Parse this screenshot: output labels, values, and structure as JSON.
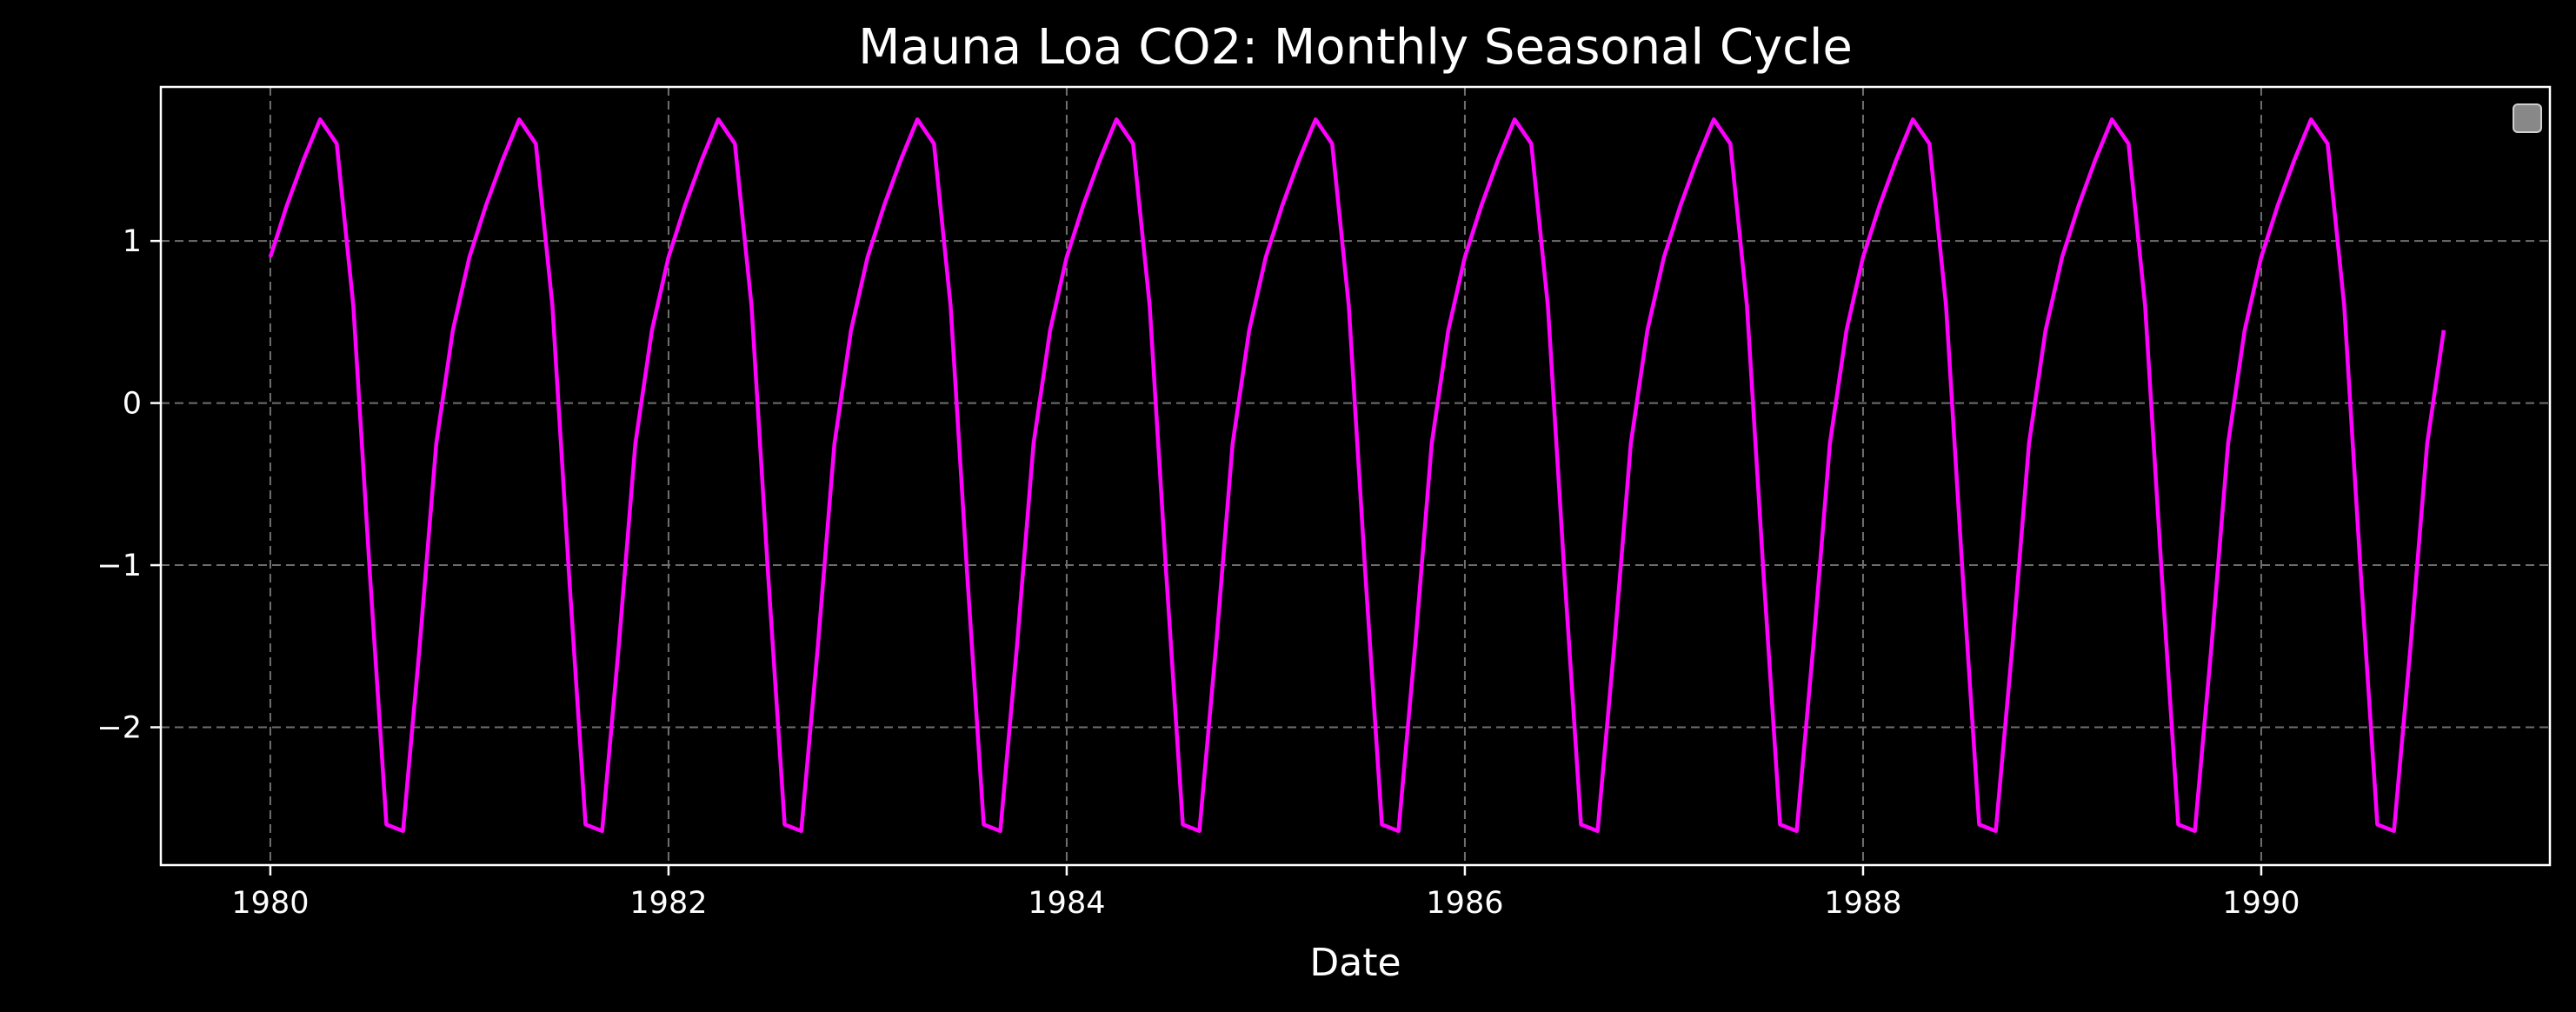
{
  "chart_data": {
    "type": "line",
    "title": "Mauna Loa CO2: Monthly Seasonal Cycle",
    "xlabel": "Date",
    "ylabel": "",
    "xlim": [
      1979.45,
      1991.45
    ],
    "ylim": [
      -2.85,
      1.95
    ],
    "x_ticks": [
      1980,
      1982,
      1984,
      1986,
      1988,
      1990
    ],
    "x_tick_labels": [
      "1980",
      "1982",
      "1984",
      "1986",
      "1988",
      "1990"
    ],
    "y_ticks": [
      -2,
      -1,
      0,
      1
    ],
    "y_tick_labels": [
      "−2",
      "−1",
      "0",
      "1"
    ],
    "grid": true,
    "legend": "top-right",
    "legend_entries": [
      ""
    ],
    "background": "#000000",
    "series": [
      {
        "color": "#ff00ff",
        "monthly_pattern": [
          0.9,
          1.22,
          1.5,
          1.75,
          1.6,
          0.6,
          -1.05,
          -2.6,
          -2.64,
          -1.5,
          -0.25,
          0.45
        ],
        "x_start": 1980.0,
        "months": 132
      }
    ]
  }
}
